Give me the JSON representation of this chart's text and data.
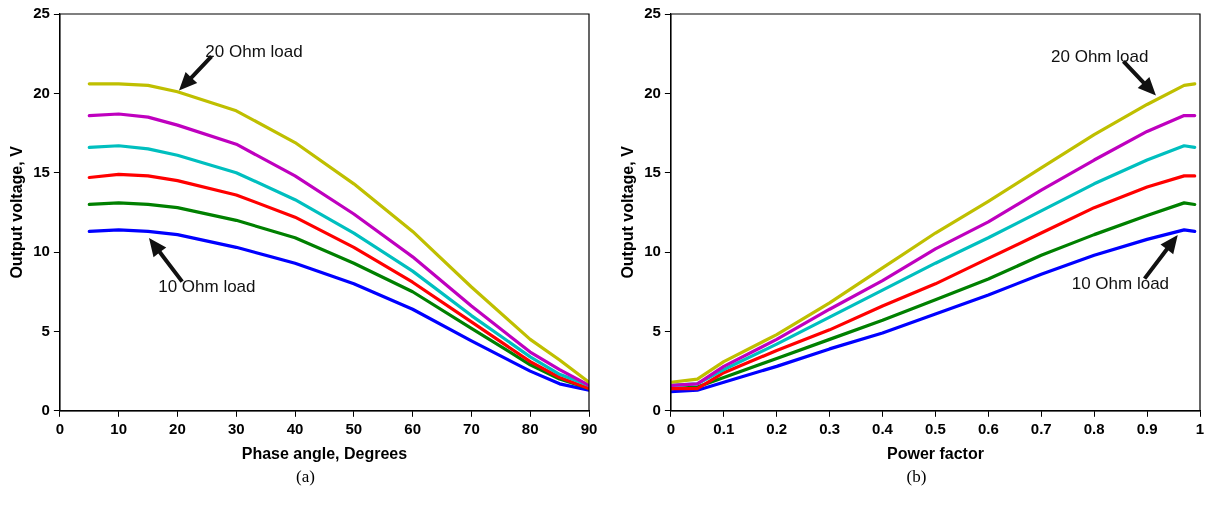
{
  "chart_data": [
    {
      "type": "line",
      "xlabel": "Phase angle, Degrees",
      "ylabel": "Output voltage, V",
      "xlim": [
        0,
        90
      ],
      "xticks": [
        0,
        10,
        20,
        30,
        40,
        50,
        60,
        70,
        80,
        90
      ],
      "ylim": [
        0,
        25
      ],
      "yticks": [
        0,
        5,
        10,
        15,
        20,
        25
      ],
      "grid": false,
      "legend": false,
      "marker": "none",
      "line_style": "solid",
      "x": [
        5,
        10,
        15,
        20,
        30,
        40,
        50,
        60,
        70,
        80,
        85,
        90
      ],
      "series": [
        {
          "color": "#bfbf00",
          "values": [
            20.6,
            20.6,
            20.5,
            20.1,
            18.9,
            16.9,
            14.3,
            11.3,
            7.8,
            4.5,
            3.2,
            1.8
          ]
        },
        {
          "color": "#bf00bf",
          "values": [
            18.6,
            18.7,
            18.5,
            18.0,
            16.8,
            14.8,
            12.4,
            9.7,
            6.6,
            3.7,
            2.6,
            1.6
          ]
        },
        {
          "color": "#00bfbf",
          "values": [
            16.6,
            16.7,
            16.5,
            16.1,
            15.0,
            13.3,
            11.2,
            8.8,
            6.0,
            3.4,
            2.3,
            1.6
          ]
        },
        {
          "color": "#ff0000",
          "values": [
            14.7,
            14.9,
            14.8,
            14.5,
            13.6,
            12.2,
            10.3,
            8.1,
            5.6,
            3.1,
            2.1,
            1.4
          ]
        },
        {
          "color": "#008000",
          "values": [
            13.0,
            13.1,
            13.0,
            12.8,
            12.0,
            10.9,
            9.3,
            7.5,
            5.2,
            2.9,
            2.0,
            1.4
          ]
        },
        {
          "color": "#0000ff",
          "values": [
            11.3,
            11.4,
            11.3,
            11.1,
            10.3,
            9.3,
            8.0,
            6.4,
            4.4,
            2.5,
            1.7,
            1.3
          ]
        }
      ],
      "annotations": [
        {
          "text": "20 Ohm load",
          "x": 20,
          "y": 20.1
        },
        {
          "text": "10 Ohm load",
          "x": 15,
          "y": 11.0
        },
        "(a)"
      ]
    },
    {
      "type": "line",
      "xlabel": "Power factor",
      "ylabel": "Output voltage, V",
      "xlim": [
        0,
        1
      ],
      "xticks": [
        0,
        0.1,
        0.2,
        0.3,
        0.4,
        0.5,
        0.6,
        0.7,
        0.8,
        0.9,
        1
      ],
      "ylim": [
        0,
        25
      ],
      "yticks": [
        0,
        5,
        10,
        15,
        20,
        25
      ],
      "grid": false,
      "legend": false,
      "marker": "none",
      "line_style": "solid",
      "x": [
        0,
        0.05,
        0.1,
        0.2,
        0.3,
        0.4,
        0.5,
        0.6,
        0.7,
        0.8,
        0.9,
        0.97,
        0.99
      ],
      "series": [
        {
          "color": "#bfbf00",
          "values": [
            1.8,
            2.0,
            3.1,
            4.8,
            6.8,
            9.0,
            11.2,
            13.2,
            15.3,
            17.4,
            19.3,
            20.5,
            20.6
          ]
        },
        {
          "color": "#bf00bf",
          "values": [
            1.6,
            1.7,
            2.8,
            4.5,
            6.4,
            8.2,
            10.2,
            11.9,
            13.9,
            15.8,
            17.6,
            18.6,
            18.6
          ]
        },
        {
          "color": "#00bfbf",
          "values": [
            1.6,
            1.7,
            2.6,
            4.2,
            5.9,
            7.6,
            9.3,
            10.9,
            12.6,
            14.3,
            15.8,
            16.7,
            16.6
          ]
        },
        {
          "color": "#ff0000",
          "values": [
            1.4,
            1.4,
            2.4,
            3.8,
            5.1,
            6.6,
            8.0,
            9.6,
            11.2,
            12.8,
            14.1,
            14.8,
            14.8
          ]
        },
        {
          "color": "#008000",
          "values": [
            1.4,
            1.5,
            2.1,
            3.3,
            4.5,
            5.7,
            7.0,
            8.3,
            9.8,
            11.1,
            12.3,
            13.1,
            13.0
          ]
        },
        {
          "color": "#0000ff",
          "values": [
            1.2,
            1.3,
            1.8,
            2.8,
            3.9,
            4.9,
            6.1,
            7.3,
            8.6,
            9.8,
            10.8,
            11.4,
            11.3
          ]
        }
      ],
      "annotations": [
        {
          "text": "20 Ohm load",
          "x": 0.92,
          "y": 19.8
        },
        {
          "text": "10 Ohm load",
          "x": 0.96,
          "y": 11.2
        },
        "(b)"
      ]
    }
  ]
}
